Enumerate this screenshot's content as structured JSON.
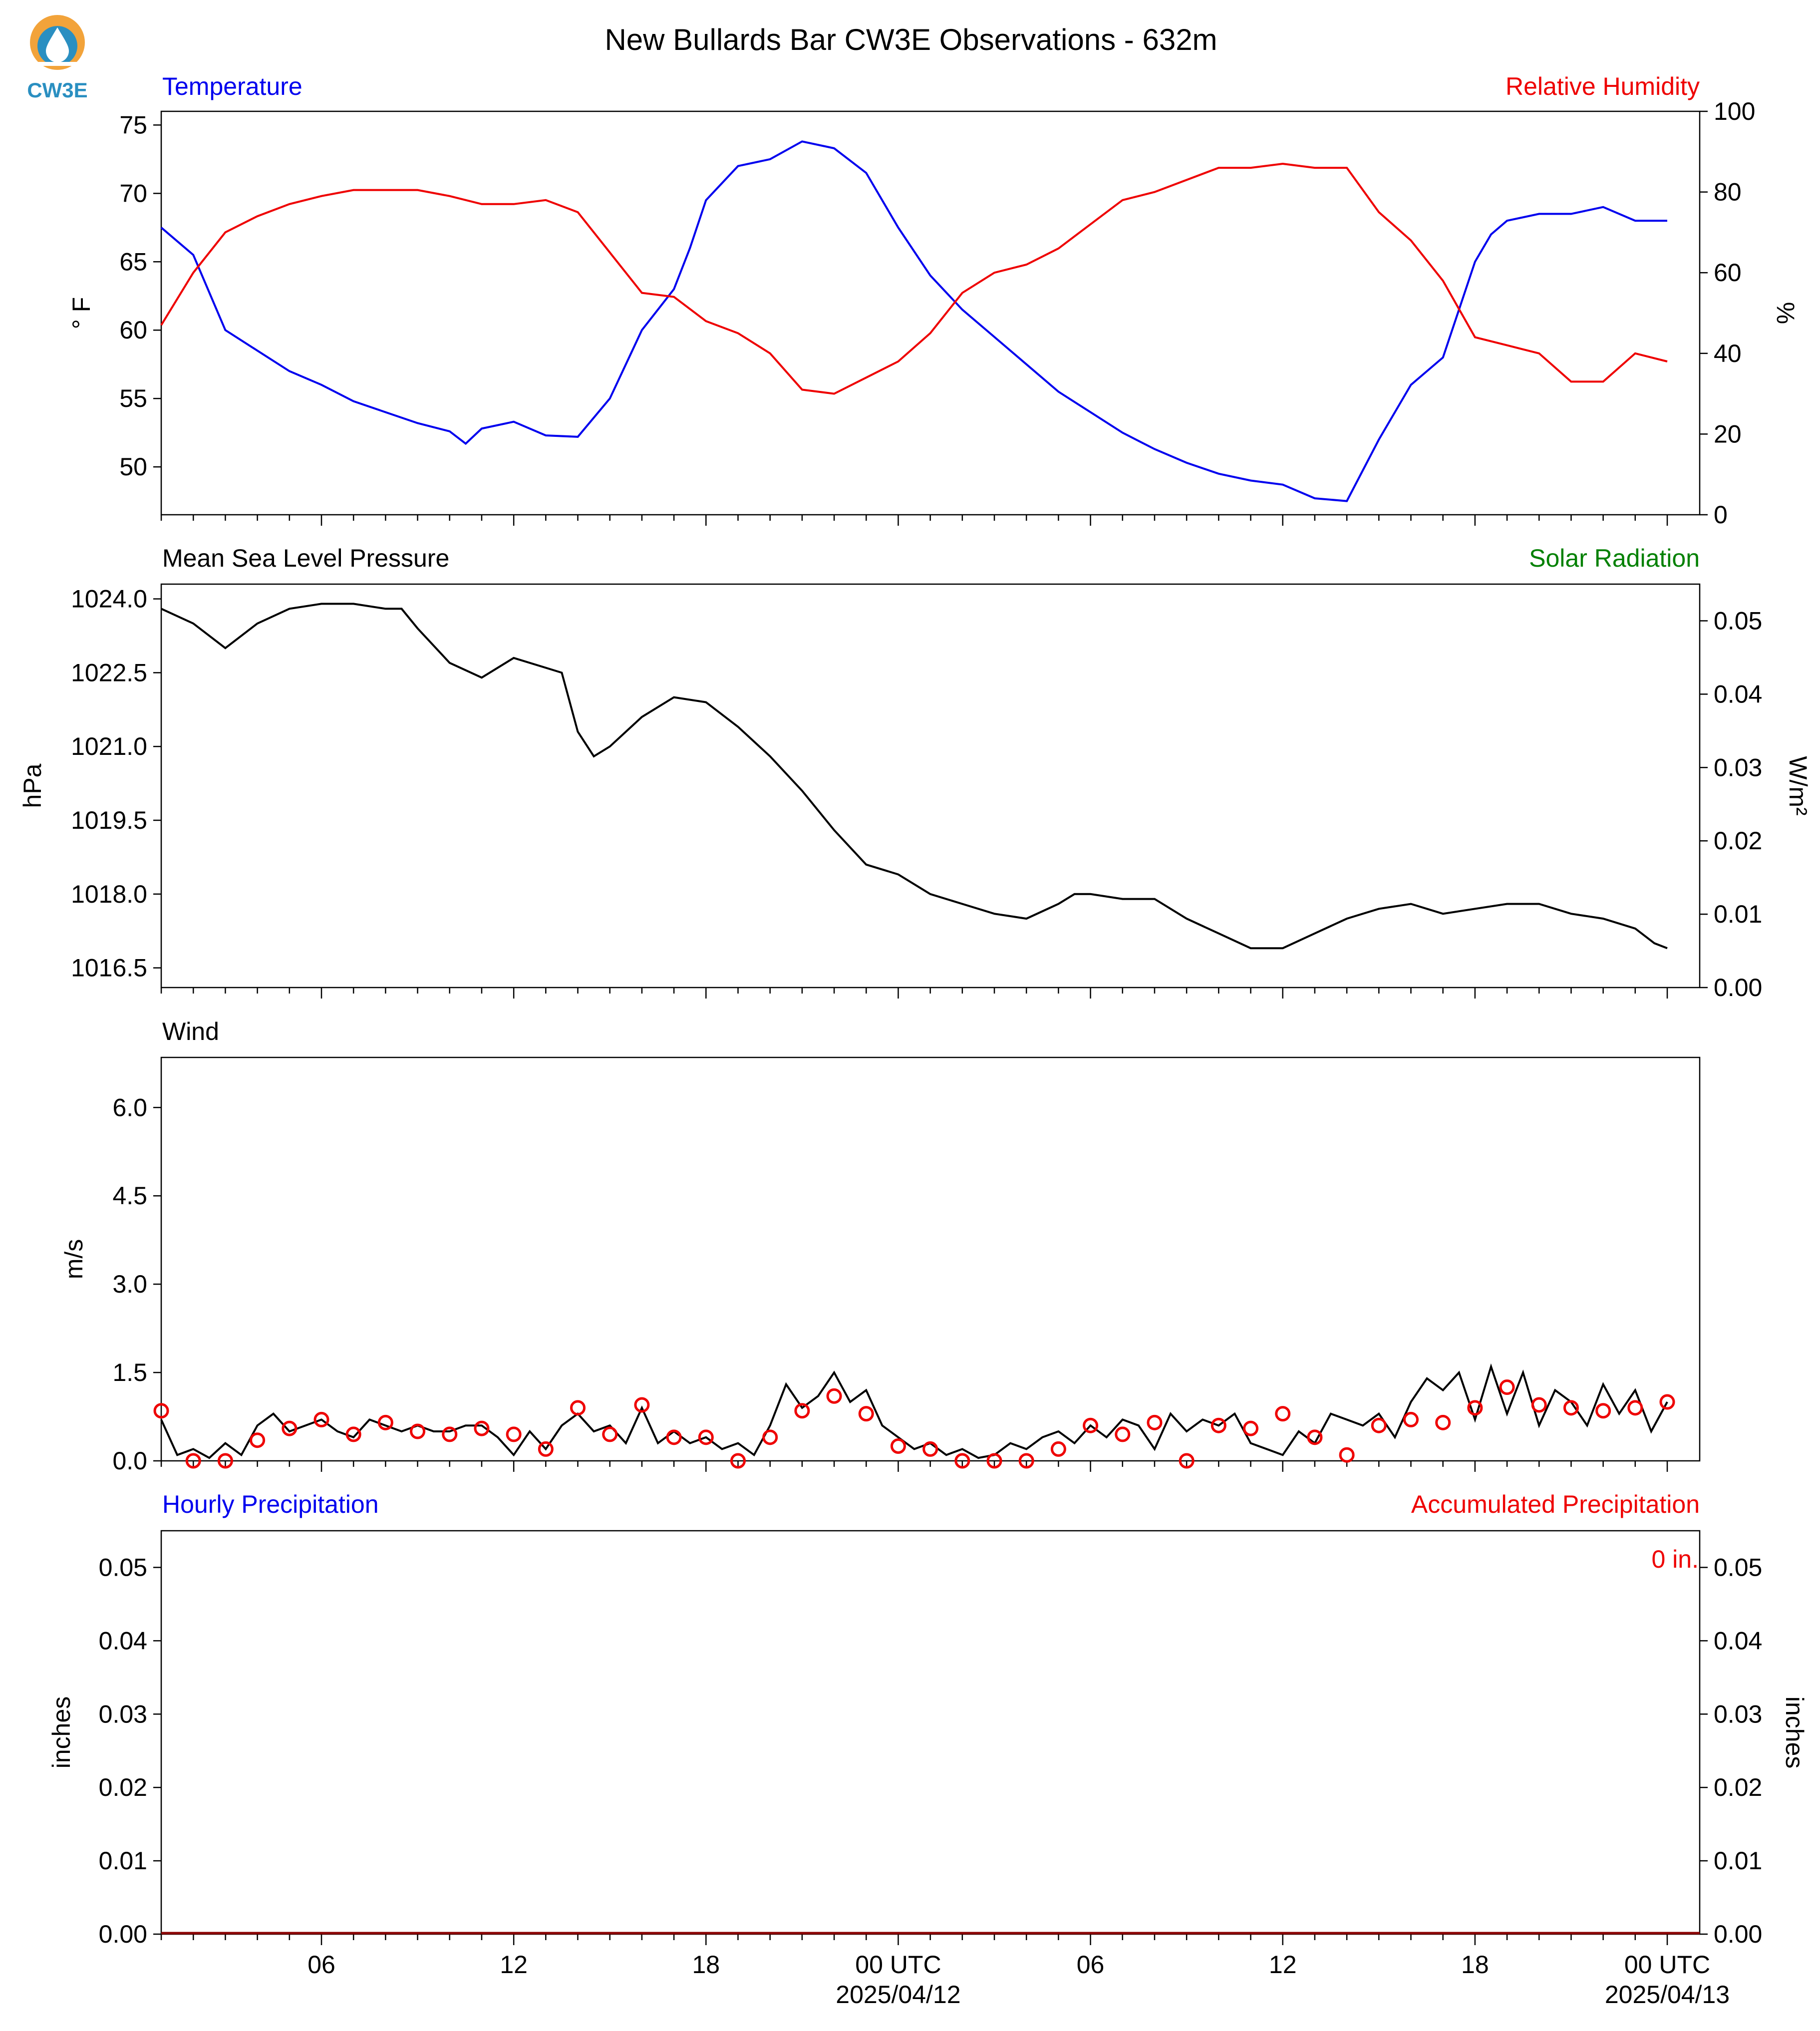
{
  "logo": {
    "text": "CW3E",
    "color": "#2a8fc1",
    "accent": "#f2a33a"
  },
  "title": "New Bullards Bar CW3E Observations - 632m",
  "x_axis": {
    "ticks": [
      "06",
      "12",
      "18",
      "00 UTC",
      "06",
      "12",
      "18",
      "00 UTC"
    ],
    "dates": [
      "2025/04/12",
      "2025/04/13"
    ],
    "range_hours": [
      1,
      48
    ]
  },
  "colors": {
    "temperature": "#0000ee",
    "humidity": "#ee0000",
    "pressure": "#000000",
    "solar": "#008000",
    "wind": "#000000",
    "gust": "#ee0000",
    "hourly_precip": "#0000ee",
    "accum_precip": "#ee0000"
  },
  "panels": {
    "temp": {
      "left_title": "Temperature",
      "right_title": "Relative Humidity",
      "left_unit": "° F",
      "right_unit": "%",
      "left_ticks": [
        "50",
        "55",
        "60",
        "65",
        "70",
        "75"
      ],
      "right_ticks": [
        "0",
        "20",
        "40",
        "60",
        "80",
        "100"
      ]
    },
    "pressure": {
      "left_title": "Mean Sea Level Pressure",
      "right_title": "Solar Radiation",
      "left_unit": "hPa",
      "right_unit": "W/m²",
      "left_ticks": [
        "1016.5",
        "1018.0",
        "1019.5",
        "1021.0",
        "1022.5",
        "1024.0"
      ],
      "right_ticks": [
        "0.00",
        "0.01",
        "0.02",
        "0.03",
        "0.04",
        "0.05"
      ]
    },
    "wind": {
      "left_title": "Wind",
      "left_unit": "m/s",
      "left_ticks": [
        "0.0",
        "1.5",
        "3.0",
        "4.5",
        "6.0"
      ]
    },
    "precip": {
      "left_title": "Hourly Precipitation",
      "right_title": "Accumulated Precipitation",
      "left_unit": "inches",
      "right_unit": "inches",
      "left_ticks": [
        "0.00",
        "0.01",
        "0.02",
        "0.03",
        "0.04",
        "0.05"
      ],
      "right_ticks": [
        "0.00",
        "0.01",
        "0.02",
        "0.03",
        "0.04",
        "0.05"
      ],
      "accum_label": "0 in."
    }
  },
  "chart_data": [
    {
      "type": "line",
      "title": "Temperature",
      "xlabel": "",
      "ylabel": "° F",
      "ylim": [
        46.5,
        76
      ],
      "y2lim": [
        0,
        100
      ],
      "series": [
        {
          "name": "Temperature",
          "axis": "left",
          "unit": "°F",
          "x": [
            1,
            2,
            3,
            4,
            5,
            6,
            7,
            8,
            9,
            10,
            10.5,
            11,
            12,
            13,
            14,
            15,
            16,
            17,
            17.5,
            18,
            19,
            20,
            21,
            22,
            23,
            24,
            25,
            26,
            27,
            28,
            29,
            30,
            31,
            32,
            33,
            34,
            35,
            36,
            37,
            38,
            39,
            40,
            41,
            42,
            42.5,
            43,
            44,
            45,
            46,
            47,
            48
          ],
          "y": [
            67.5,
            65.5,
            60,
            58.5,
            57,
            56,
            54.8,
            54,
            53.2,
            52.6,
            51.7,
            52.8,
            53.3,
            52.3,
            52.2,
            55,
            60,
            63,
            66,
            69.5,
            72,
            72.5,
            73.8,
            73.3,
            71.5,
            67.5,
            64,
            61.5,
            59.5,
            57.5,
            55.5,
            54,
            52.5,
            51.3,
            50.3,
            49.5,
            49,
            48.7,
            47.7,
            47.5,
            52,
            56,
            58,
            65,
            67,
            68,
            68.5,
            68.5,
            69,
            68,
            68
          ]
        },
        {
          "name": "Relative Humidity",
          "axis": "right",
          "unit": "%",
          "x": [
            1,
            2,
            3,
            4,
            5,
            6,
            7,
            8,
            9,
            10,
            11,
            12,
            13,
            14,
            15,
            16,
            17,
            18,
            19,
            20,
            21,
            22,
            23,
            24,
            25,
            26,
            27,
            28,
            29,
            30,
            31,
            32,
            33,
            34,
            35,
            36,
            37,
            38,
            39,
            40,
            41,
            42,
            43,
            44,
            45,
            46,
            47,
            48
          ],
          "y": [
            47,
            60,
            70,
            74,
            77,
            79,
            80.5,
            80.5,
            80.5,
            79,
            77,
            77,
            78,
            75,
            65,
            55,
            54,
            48,
            45,
            40,
            31,
            30,
            34,
            38,
            45,
            55,
            60,
            62,
            66,
            72,
            78,
            80,
            83,
            86,
            86,
            87,
            86,
            86,
            75,
            68,
            58,
            44,
            42,
            40,
            33,
            33,
            40,
            38
          ]
        }
      ]
    },
    {
      "type": "line",
      "title": "Mean Sea Level Pressure",
      "xlabel": "",
      "ylabel": "hPa",
      "ylim": [
        1016.1,
        1024.3
      ],
      "y2lim": [
        0,
        0.055
      ],
      "series": [
        {
          "name": "Mean Sea Level Pressure",
          "axis": "left",
          "unit": "hPa",
          "x": [
            1,
            2,
            3,
            4,
            5,
            6,
            7,
            8,
            8.5,
            9,
            10,
            11,
            12,
            13,
            13.5,
            14,
            14.5,
            15,
            16,
            17,
            18,
            19,
            20,
            21,
            22,
            23,
            24,
            25,
            26,
            27,
            28,
            29,
            29.5,
            30,
            31,
            31.5,
            32,
            33,
            34,
            35,
            36,
            37,
            38,
            39,
            40,
            41,
            42,
            43,
            44,
            45,
            46,
            47,
            47.6,
            48
          ],
          "y": [
            1023.8,
            1023.5,
            1023.0,
            1023.5,
            1023.8,
            1023.9,
            1023.9,
            1023.8,
            1023.8,
            1023.4,
            1022.7,
            1022.4,
            1022.8,
            1022.6,
            1022.5,
            1021.3,
            1020.8,
            1021.0,
            1021.6,
            1022.0,
            1021.9,
            1021.4,
            1020.8,
            1020.1,
            1019.3,
            1018.6,
            1018.4,
            1018.0,
            1017.8,
            1017.6,
            1017.5,
            1017.8,
            1018.0,
            1018.0,
            1017.9,
            1017.9,
            1017.9,
            1017.5,
            1017.2,
            1016.9,
            1016.9,
            1017.2,
            1017.5,
            1017.7,
            1017.8,
            1017.6,
            1017.7,
            1017.8,
            1017.8,
            1017.6,
            1017.5,
            1017.3,
            1017.0,
            1016.9
          ]
        },
        {
          "name": "Solar Radiation",
          "axis": "right",
          "unit": "W/m²",
          "x": [],
          "y": []
        }
      ]
    },
    {
      "type": "line",
      "title": "Wind",
      "xlabel": "",
      "ylabel": "m/s",
      "ylim": [
        0,
        6.85
      ],
      "series": [
        {
          "name": "Wind speed",
          "unit": "m/s",
          "x": [
            1,
            1.5,
            2,
            2.5,
            3,
            3.5,
            4,
            4.5,
            5,
            5.5,
            6,
            6.5,
            7,
            7.5,
            8,
            8.5,
            9,
            9.5,
            10,
            10.5,
            11,
            11.5,
            12,
            12.5,
            13,
            13.5,
            14,
            14.5,
            15,
            15.5,
            16,
            16.5,
            17,
            17.5,
            18,
            18.5,
            19,
            19.5,
            20,
            20.5,
            21,
            21.5,
            22,
            22.5,
            23,
            23.5,
            24,
            24.5,
            25,
            25.5,
            26,
            26.5,
            27,
            27.5,
            28,
            28.5,
            29,
            29.5,
            30,
            30.5,
            31,
            31.5,
            32,
            32.5,
            33,
            33.5,
            34,
            34.5,
            35,
            35.5,
            36,
            36.5,
            37,
            37.5,
            38,
            38.5,
            39,
            39.5,
            40,
            40.5,
            41,
            41.5,
            42,
            42.5,
            43,
            43.5,
            44,
            44.5,
            45,
            45.5,
            46,
            46.5,
            47,
            47.5,
            48
          ],
          "y": [
            0.7,
            0.1,
            0.2,
            0.05,
            0.3,
            0.1,
            0.6,
            0.8,
            0.5,
            0.6,
            0.7,
            0.5,
            0.4,
            0.7,
            0.6,
            0.5,
            0.6,
            0.5,
            0.5,
            0.6,
            0.6,
            0.4,
            0.1,
            0.5,
            0.2,
            0.6,
            0.8,
            0.5,
            0.6,
            0.3,
            0.9,
            0.3,
            0.5,
            0.3,
            0.4,
            0.2,
            0.3,
            0.1,
            0.6,
            1.3,
            0.9,
            1.1,
            1.5,
            1.0,
            1.2,
            0.6,
            0.4,
            0.2,
            0.3,
            0.1,
            0.2,
            0.05,
            0.1,
            0.3,
            0.2,
            0.4,
            0.5,
            0.3,
            0.6,
            0.4,
            0.7,
            0.6,
            0.2,
            0.8,
            0.5,
            0.7,
            0.6,
            0.8,
            0.3,
            0.2,
            0.1,
            0.5,
            0.3,
            0.8,
            0.7,
            0.6,
            0.8,
            0.4,
            1.0,
            1.4,
            1.2,
            1.5,
            0.7,
            1.6,
            0.8,
            1.5,
            0.6,
            1.2,
            1.0,
            0.6,
            1.3,
            0.8,
            1.2,
            0.5,
            1.0
          ]
        },
        {
          "name": "Hourly mean",
          "unit": "m/s",
          "marker": "circle",
          "x": [
            1,
            2,
            3,
            4,
            5,
            6,
            7,
            8,
            9,
            10,
            11,
            12,
            13,
            14,
            15,
            16,
            17,
            18,
            19,
            20,
            21,
            22,
            23,
            24,
            25,
            26,
            27,
            28,
            29,
            30,
            31,
            32,
            33,
            34,
            35,
            36,
            37,
            38,
            39,
            40,
            41,
            42,
            43,
            44,
            45,
            46,
            47,
            48
          ],
          "y": [
            0.85,
            0,
            0,
            0.35,
            0.55,
            0.7,
            0.45,
            0.65,
            0.5,
            0.45,
            0.55,
            0.45,
            0.2,
            0.9,
            0.45,
            0.95,
            0.4,
            0.4,
            0,
            0.4,
            0.85,
            1.1,
            0.8,
            0.25,
            0.2,
            0,
            0,
            0,
            0.2,
            0.6,
            0.45,
            0.65,
            0,
            0.6,
            0.55,
            0.8,
            0.4,
            0.1,
            0.6,
            0.7,
            0.65,
            0.9,
            1.25,
            0.95,
            0.9,
            0.85,
            0.9,
            1.0
          ]
        }
      ]
    },
    {
      "type": "bar",
      "title": "Hourly Precipitation",
      "xlabel": "",
      "ylabel": "inches",
      "ylim": [
        0,
        0.055
      ],
      "y2lim": [
        0,
        0.055
      ],
      "series": [
        {
          "name": "Hourly Precipitation",
          "axis": "left",
          "unit": "inches",
          "values": [
            0
          ]
        },
        {
          "name": "Accumulated Precipitation",
          "axis": "right",
          "unit": "inches",
          "values": [
            0
          ]
        }
      ]
    }
  ]
}
